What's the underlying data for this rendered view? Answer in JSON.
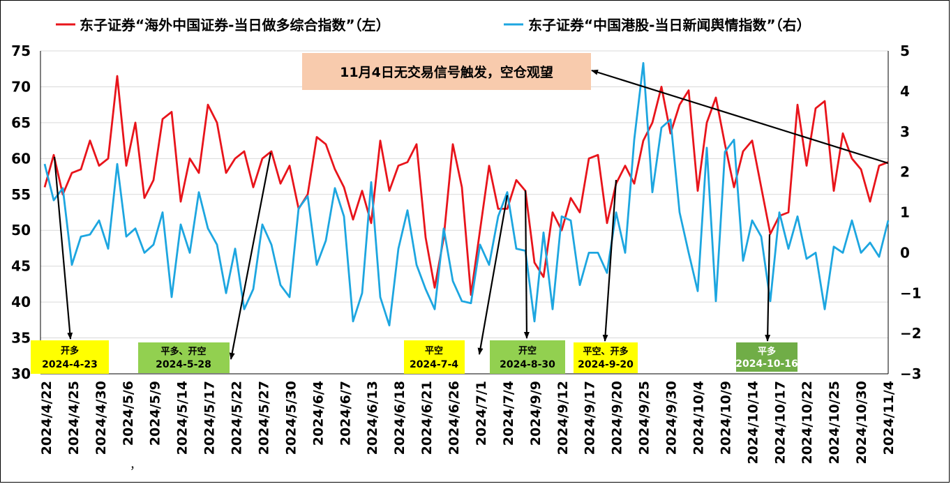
{
  "chart_data": {
    "type": "line",
    "legend_position": "top",
    "grid": "horizontal",
    "y_left": {
      "min": 30,
      "max": 75,
      "step": 5
    },
    "y_right": {
      "min": -3,
      "max": 5,
      "step": 1
    },
    "x_tick_labels": [
      "2024/4/22",
      "2024/4/25",
      "2024/4/30",
      "2024/5/6",
      "2024/5/9",
      "2024/5/14",
      "2024/5/17",
      "2024/5/22",
      "2024/5/27",
      "2024/5/30",
      "2024/6/4",
      "2024/6/7",
      "2024/6/13",
      "2024/6/18",
      "2024/6/21",
      "2024/6/26",
      "2024/7/1",
      "2024/7/4",
      "2024/9/9",
      "2024/9/12",
      "2024/9/17",
      "2024/9/20",
      "2024/9/25",
      "2024/9/30",
      "2024/10/4",
      "2024/10/9",
      "2024/10/14",
      "2024/10/17",
      "2024/10/22",
      "2024/10/25",
      "2024/10/30",
      "2024/11/4"
    ],
    "series": [
      {
        "name": "东子证券“海外中国证券-当日做多综合指数”（左）",
        "axis": "left",
        "color": "#e8141b",
        "values": [
          56,
          60.5,
          55,
          58,
          58.5,
          62.5,
          59,
          60,
          71.5,
          59,
          65,
          54.5,
          57,
          65.5,
          66.5,
          54,
          60,
          58,
          67.5,
          65,
          58,
          60,
          61,
          56,
          60,
          61,
          56.5,
          59,
          53,
          55,
          63,
          62,
          58.5,
          56,
          51.5,
          55.5,
          51,
          62.5,
          55.5,
          59,
          59.5,
          62,
          49,
          42,
          49,
          62,
          56,
          41,
          50,
          59,
          53,
          53,
          57,
          55.5,
          45.5,
          43.5,
          52.5,
          50,
          54.5,
          52.5,
          60,
          60.5,
          51,
          56.5,
          59,
          56.5,
          62.5,
          65,
          70,
          63.5,
          67.5,
          69.5,
          55.5,
          65,
          68.5,
          62,
          56,
          61,
          62.5,
          56,
          49.5,
          52,
          52.5,
          67.5,
          59,
          67,
          68,
          55.5,
          63.5,
          60,
          58.5,
          54,
          59,
          59.5
        ]
      },
      {
        "name": "东子证券“中国港股-当日新闻舆情指数”（右）",
        "axis": "right",
        "color": "#1da6e0",
        "values": [
          2.2,
          1.3,
          1.6,
          -0.3,
          0.4,
          0.45,
          0.8,
          0.1,
          2.2,
          0.4,
          0.6,
          0,
          0.2,
          1,
          -1.1,
          0.7,
          0,
          1.5,
          0.6,
          0.2,
          -1,
          0.1,
          -1.4,
          -0.9,
          0.7,
          0.2,
          -0.8,
          -1.1,
          1.1,
          1.4,
          -0.3,
          0.3,
          1.6,
          0.9,
          -1.7,
          -1,
          1.75,
          -1.1,
          -1.8,
          0.1,
          1.05,
          -0.3,
          -0.9,
          -1.4,
          0.6,
          -0.7,
          -1.2,
          -1.25,
          0.2,
          -0.3,
          0.9,
          1.5,
          0.1,
          0.05,
          -1.7,
          0.5,
          -1.4,
          0.9,
          0.8,
          -0.8,
          0,
          0,
          -0.5,
          1,
          0,
          2.8,
          4.7,
          1.5,
          3.1,
          3.3,
          1,
          0,
          -0.95,
          2.6,
          -1.2,
          2.5,
          2.8,
          -0.2,
          0.8,
          0.4,
          -1.2,
          1,
          0.1,
          0.9,
          -0.15,
          0,
          -1.4,
          0.15,
          0,
          0.8,
          0,
          0.25,
          -0.1,
          0.8
        ]
      }
    ],
    "annotations": [
      {
        "id": "main",
        "text": "11月4日无交易信号触发，空仓观望",
        "bg": "#f8cbad"
      },
      {
        "id": "s1",
        "line1": "开多",
        "line2": "2024-4-23",
        "bg": "#ffff00",
        "color": "#000000"
      },
      {
        "id": "s2",
        "line1": "平多、开空",
        "line2": "2024-5-28",
        "bg": "#92d050",
        "color": "#000000"
      },
      {
        "id": "s3",
        "line1": "平空",
        "line2": "2024-7-4",
        "bg": "#ffff00",
        "color": "#000000"
      },
      {
        "id": "s4",
        "line1": "开空",
        "line2": "2024-8-30",
        "bg": "#92d050",
        "color": "#000000"
      },
      {
        "id": "s5",
        "line1": "平空、开多",
        "line2": "2024-9-20",
        "bg": "#ffff00",
        "color": "#000000"
      },
      {
        "id": "s6",
        "line1": "平多",
        "line2": "2024-10-16",
        "bg": "#70ad47",
        "color": "#ffffff"
      }
    ],
    "stray_mark": "，"
  }
}
